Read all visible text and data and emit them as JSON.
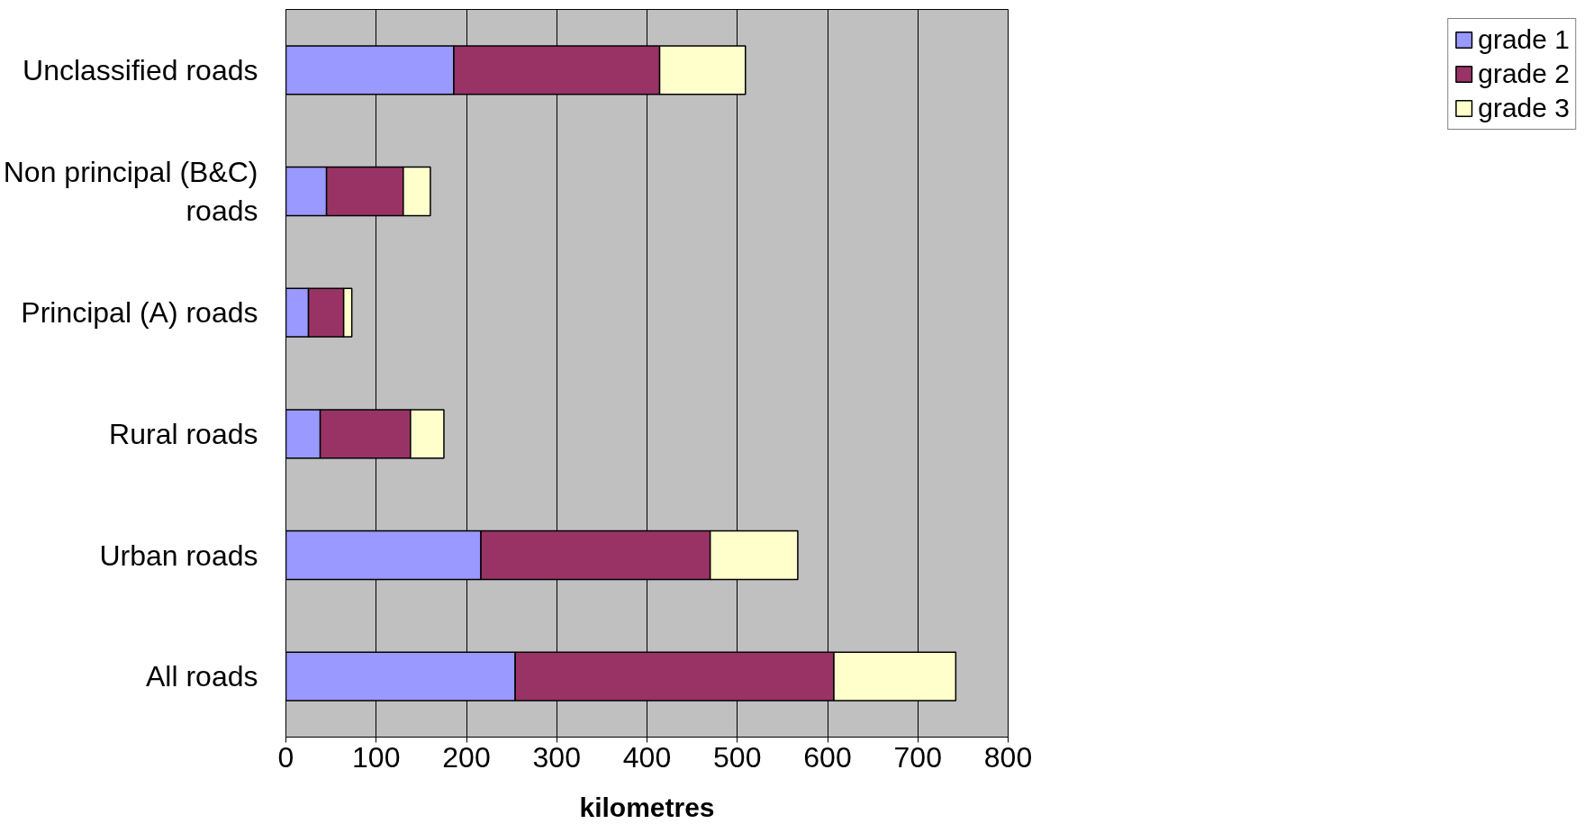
{
  "chart_data": {
    "type": "bar",
    "orientation": "horizontal",
    "stacked": true,
    "xlabel": "kilometres",
    "categories": [
      "Unclassified roads",
      "Non principal (B&C) roads",
      "Principal (A) roads",
      "Rural roads",
      "Urban roads",
      "All roads"
    ],
    "series": [
      {
        "name": "grade 1",
        "color": "#9999ff",
        "values": [
          186,
          45,
          25,
          38,
          216,
          254
        ]
      },
      {
        "name": "grade 2",
        "color": "#993366",
        "values": [
          228,
          85,
          39,
          100,
          254,
          353
        ]
      },
      {
        "name": "grade 3",
        "color": "#ffffcc",
        "values": [
          95,
          30,
          9,
          37,
          97,
          135
        ]
      }
    ],
    "xlim": [
      0,
      800
    ],
    "xticks": [
      0,
      100,
      200,
      300,
      400,
      500,
      600,
      700,
      800
    ],
    "grid": "x",
    "legend": "right"
  }
}
